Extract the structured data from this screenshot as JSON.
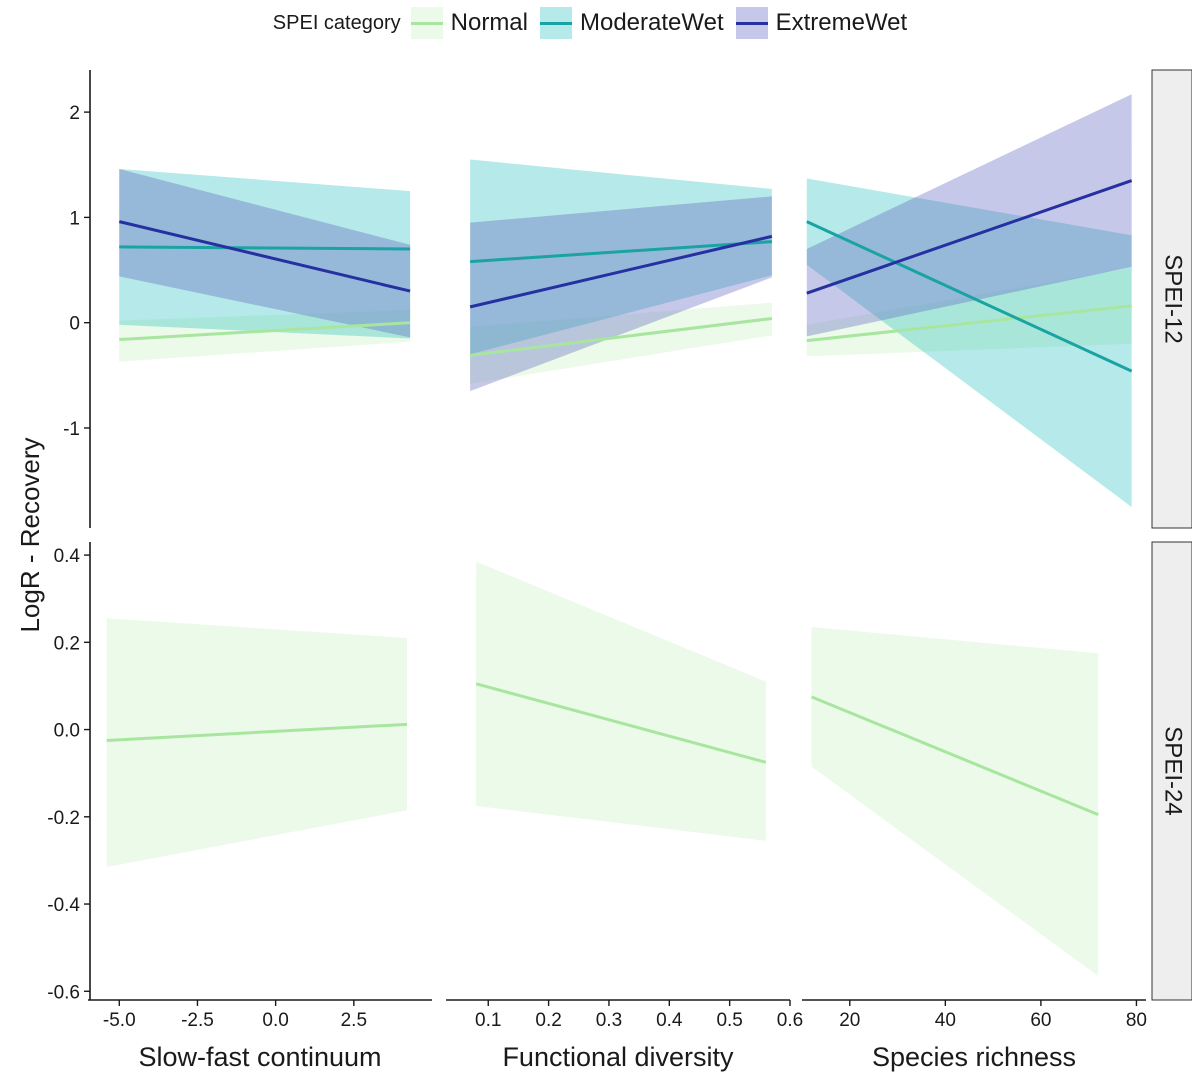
{
  "legend": {
    "title": "SPEI category",
    "items": [
      {
        "label": "Normal",
        "color": "#a8e6a0",
        "fill": "#c6f0c0"
      },
      {
        "label": "ModerateWet",
        "color": "#1aa3a3",
        "fill": "#2fbfbf"
      },
      {
        "label": "ExtremeWet",
        "color": "#2630a0",
        "fill": "#5b62c0"
      }
    ]
  },
  "y_axis_label": "LogR - Recovery",
  "chart_data": [
    {
      "type": "line",
      "row": "SPEI-12",
      "col": "Slow-fast continuum",
      "xlim": [
        -6,
        5
      ],
      "ylim": [
        -1.95,
        2.4
      ],
      "series": [
        {
          "name": "Normal",
          "x": [
            -5.0,
            4.3
          ],
          "y": [
            -0.16,
            0.0
          ],
          "lower": [
            -0.37,
            -0.18
          ],
          "upper": [
            0.02,
            0.12
          ]
        },
        {
          "name": "ModerateWet",
          "x": [
            -5.0,
            4.3
          ],
          "y": [
            0.72,
            0.7
          ],
          "lower": [
            -0.02,
            -0.15
          ],
          "upper": [
            1.46,
            1.25
          ]
        },
        {
          "name": "ExtremeWet",
          "x": [
            -5.0,
            4.3
          ],
          "y": [
            0.96,
            0.3
          ],
          "lower": [
            0.44,
            -0.14
          ],
          "upper": [
            1.46,
            0.74
          ]
        }
      ]
    },
    {
      "type": "line",
      "row": "SPEI-12",
      "col": "Functional diversity",
      "xlim": [
        0.03,
        0.6
      ],
      "ylim": [
        -1.95,
        2.4
      ],
      "series": [
        {
          "name": "Normal",
          "x": [
            0.07,
            0.57
          ],
          "y": [
            -0.31,
            0.04
          ],
          "lower": [
            -0.58,
            -0.12
          ],
          "upper": [
            -0.04,
            0.19
          ]
        },
        {
          "name": "ModerateWet",
          "x": [
            0.07,
            0.57
          ],
          "y": [
            0.58,
            0.77
          ],
          "lower": [
            -0.3,
            0.45
          ],
          "upper": [
            1.55,
            1.27
          ]
        },
        {
          "name": "ExtremeWet",
          "x": [
            0.07,
            0.57
          ],
          "y": [
            0.15,
            0.82
          ],
          "lower": [
            -0.65,
            0.43
          ],
          "upper": [
            0.95,
            1.2
          ]
        }
      ]
    },
    {
      "type": "line",
      "row": "SPEI-12",
      "col": "Species richness",
      "xlim": [
        10,
        82
      ],
      "ylim": [
        -1.95,
        2.4
      ],
      "series": [
        {
          "name": "Normal",
          "x": [
            11,
            79
          ],
          "y": [
            -0.17,
            0.16
          ],
          "lower": [
            -0.32,
            -0.2
          ],
          "upper": [
            -0.02,
            0.52
          ]
        },
        {
          "name": "ModerateWet",
          "x": [
            11,
            79
          ],
          "y": [
            0.96,
            -0.46
          ],
          "lower": [
            0.55,
            -1.75
          ],
          "upper": [
            1.37,
            0.83
          ]
        },
        {
          "name": "ExtremeWet",
          "x": [
            11,
            79
          ],
          "y": [
            0.28,
            1.35
          ],
          "lower": [
            -0.13,
            0.53
          ],
          "upper": [
            0.7,
            2.17
          ]
        }
      ]
    },
    {
      "type": "line",
      "row": "SPEI-24",
      "col": "Slow-fast continuum",
      "xlim": [
        -6,
        5
      ],
      "ylim": [
        -0.62,
        0.43
      ],
      "series": [
        {
          "name": "Normal",
          "x": [
            -5.4,
            4.2
          ],
          "y": [
            -0.025,
            0.012
          ],
          "lower": [
            -0.315,
            -0.185
          ],
          "upper": [
            0.255,
            0.21
          ]
        }
      ]
    },
    {
      "type": "line",
      "row": "SPEI-24",
      "col": "Functional diversity",
      "xlim": [
        0.03,
        0.6
      ],
      "ylim": [
        -0.62,
        0.43
      ],
      "series": [
        {
          "name": "Normal",
          "x": [
            0.08,
            0.56
          ],
          "y": [
            0.105,
            -0.075
          ],
          "lower": [
            -0.175,
            -0.255
          ],
          "upper": [
            0.385,
            0.11
          ]
        }
      ]
    },
    {
      "type": "line",
      "row": "SPEI-24",
      "col": "Species richness",
      "xlim": [
        10,
        82
      ],
      "ylim": [
        -0.62,
        0.43
      ],
      "series": [
        {
          "name": "Normal",
          "x": [
            12,
            72
          ],
          "y": [
            0.075,
            -0.195
          ],
          "lower": [
            -0.085,
            -0.565
          ],
          "upper": [
            0.235,
            0.175
          ]
        }
      ]
    }
  ],
  "panels": {
    "rows": [
      {
        "label": "SPEI-12",
        "ticks": [
          -1,
          0,
          1,
          2
        ],
        "tick_labels": [
          "-1",
          "0",
          "1",
          "2"
        ]
      },
      {
        "label": "SPEI-24",
        "ticks": [
          -0.6,
          -0.4,
          -0.2,
          0.0,
          0.2,
          0.4
        ],
        "tick_labels": [
          "-0.6",
          "-0.4",
          "-0.2",
          "0.0",
          "0.2",
          "0.4"
        ]
      }
    ],
    "cols": [
      {
        "label": "Slow-fast continuum",
        "ticks": [
          -5.0,
          -2.5,
          0.0,
          2.5
        ],
        "tick_labels": [
          "-5.0",
          "-2.5",
          "0.0",
          "2.5"
        ]
      },
      {
        "label": "Functional diversity",
        "ticks": [
          0.1,
          0.2,
          0.3,
          0.4,
          0.5,
          0.6
        ],
        "tick_labels": [
          "0.1",
          "0.2",
          "0.3",
          "0.4",
          "0.5",
          "0.6"
        ]
      },
      {
        "label": "Species richness",
        "ticks": [
          20,
          40,
          60,
          80
        ],
        "tick_labels": [
          "20",
          "40",
          "60",
          "80"
        ]
      }
    ]
  }
}
